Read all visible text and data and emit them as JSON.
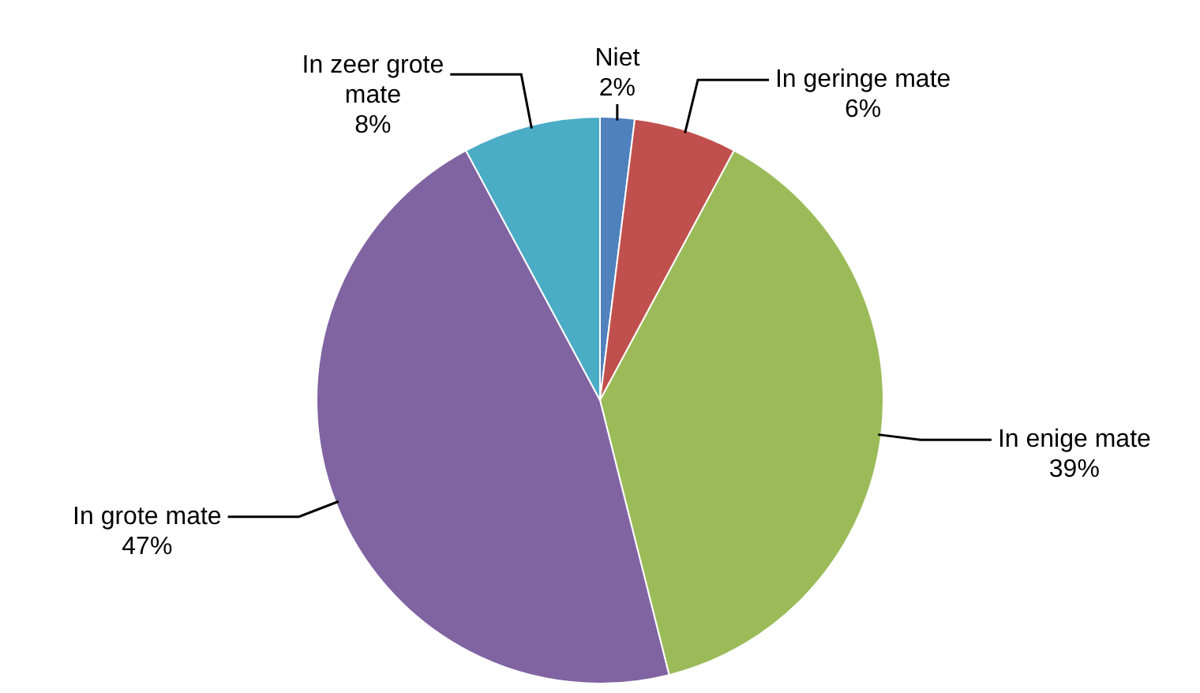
{
  "chart_data": {
    "type": "pie",
    "categories": [
      "Niet",
      "In geringe mate",
      "In enige mate",
      "In grote mate",
      "In zeer grote mate"
    ],
    "values": [
      2,
      6,
      39,
      47,
      8
    ],
    "value_labels": [
      "2%",
      "6%",
      "39%",
      "47%",
      "8%"
    ],
    "colors": [
      "#4f81bd",
      "#c0504d",
      "#9bbb59",
      "#8064a2",
      "#4bacc6"
    ],
    "legend": false
  }
}
